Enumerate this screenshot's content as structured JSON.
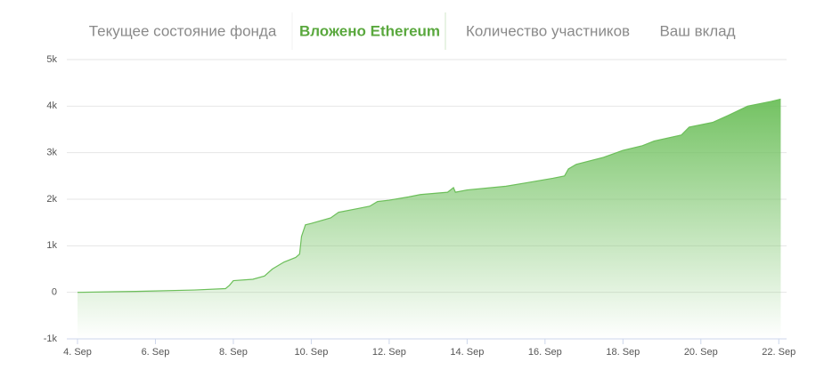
{
  "tabs": [
    "Текущее состояние фонда",
    "Вложено Ethereum",
    "Количество участников",
    "Ваш вклад"
  ],
  "active_tab": 1,
  "chart_data": {
    "type": "area",
    "color": "#6cbf5a",
    "x": [
      4.0,
      5.5,
      6.0,
      7.0,
      7.8,
      7.9,
      8.0,
      8.5,
      8.8,
      9.0,
      9.3,
      9.6,
      9.7,
      9.75,
      9.85,
      10.0,
      10.5,
      10.7,
      11.2,
      11.5,
      11.7,
      12.0,
      12.5,
      12.8,
      13.5,
      13.65,
      13.7,
      14.0,
      15.0,
      15.5,
      16.2,
      16.5,
      16.6,
      16.8,
      17.5,
      18.0,
      18.5,
      18.8,
      19.5,
      19.7,
      20.3,
      20.7,
      21.2,
      21.8,
      22.05
    ],
    "values": [
      0,
      20,
      30,
      50,
      80,
      150,
      250,
      280,
      350,
      500,
      650,
      750,
      820,
      1200,
      1450,
      1480,
      1600,
      1720,
      1800,
      1850,
      1950,
      1980,
      2050,
      2100,
      2150,
      2250,
      2150,
      2200,
      2280,
      2350,
      2450,
      2500,
      2650,
      2750,
      2900,
      3050,
      3150,
      3250,
      3380,
      3550,
      3650,
      3800,
      4000,
      4100,
      4150
    ],
    "xlim": [
      4,
      22.2
    ],
    "xticks": [
      {
        "value": 4,
        "label": "4. Sep"
      },
      {
        "value": 6,
        "label": "6. Sep"
      },
      {
        "value": 8,
        "label": "8. Sep"
      },
      {
        "value": 10,
        "label": "10. Sep"
      },
      {
        "value": 12,
        "label": "12. Sep"
      },
      {
        "value": 14,
        "label": "14. Sep"
      },
      {
        "value": 16,
        "label": "16. Sep"
      },
      {
        "value": 18,
        "label": "18. Sep"
      },
      {
        "value": 20,
        "label": "20. Sep"
      },
      {
        "value": 22,
        "label": "22. Sep"
      }
    ],
    "ylim": [
      -1000,
      5000
    ],
    "yticks": [
      {
        "value": -1000,
        "label": "-1k"
      },
      0,
      {
        "value": 1000,
        "label": "1k"
      },
      {
        "value": 2000,
        "label": "2k"
      },
      {
        "value": 3000,
        "label": "3k"
      },
      {
        "value": 4000,
        "label": "4k"
      },
      {
        "value": 5000,
        "label": "5k"
      }
    ],
    "grid": true
  }
}
